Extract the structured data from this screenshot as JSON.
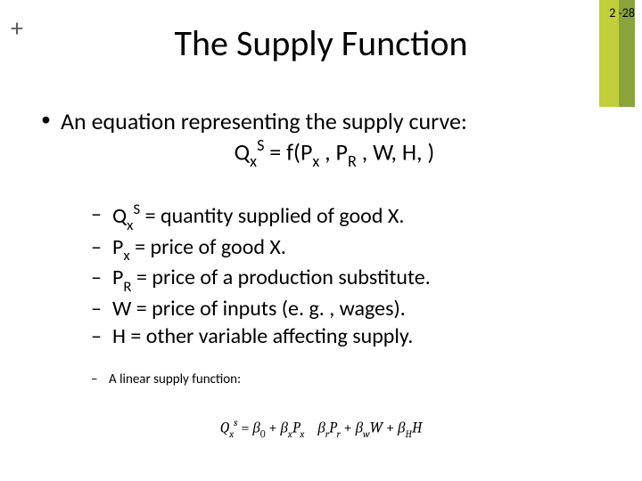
{
  "corner": {
    "page_number": "2 -28",
    "bar_a_color": "#c0cf3a",
    "bar_b_color": "#8aa33b"
  },
  "plus_symbol": "+",
  "title": "The Supply Function",
  "bullet1_lead": "An equation representing the supply curve:",
  "equation": {
    "Q": "Q",
    "Q_sub": "x",
    "Q_sup": "S",
    "eq_txt": " = f(P",
    "Px_sub": "x",
    "comma1": " , P",
    "Pr_sub": "R",
    "tail": " , W, H, )"
  },
  "defs": {
    "d1": {
      "sym_Q": "Q",
      "sym_sub": "x",
      "sym_sup": "S",
      "rest": " = quantity supplied of good X."
    },
    "d2": {
      "sym_P": "P",
      "sym_sub": "x",
      "rest": " = price of good X."
    },
    "d3": {
      "sym_P": "P",
      "sym_sub": "R",
      "rest": " = price of a production substitute."
    },
    "d4": {
      "txt": "W = price of inputs (e. g. , wages)."
    },
    "d5": {
      "txt": "H = other variable affecting supply."
    }
  },
  "linear_label": "A linear supply function:",
  "linear_eq": {
    "Q": "Q",
    "Q_sub": "x",
    "Q_sup": "s",
    "eq": " = ",
    "b": "β",
    "b0": "0",
    "plus1": " + ",
    "bx": "x",
    "Px": "P",
    "Px_sub": "x",
    "gap": "    ",
    "br": "r",
    "Pr": "P",
    "Pr_sub": "r",
    "plus3": " + ",
    "bw": "w",
    "W": "W",
    "plus4": " + ",
    "bH": "H",
    "H": "H"
  },
  "fontsize": {
    "title": 40,
    "lvl1": 26,
    "lvl2": 24,
    "lvl3": 15,
    "linear_eq": 17
  }
}
